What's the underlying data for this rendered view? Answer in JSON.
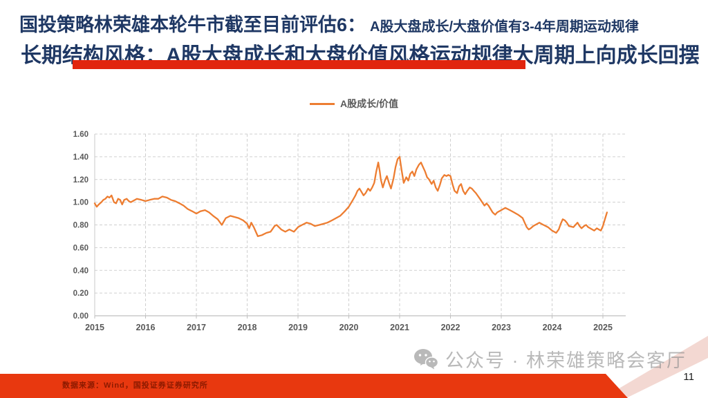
{
  "slide": {
    "title_line1_main": "国投策略林荣雄本轮牛市截至目前评估6：",
    "title_line1_sub": "A股大盘成长/大盘价值有3-4年周期运动规律",
    "title_line2": "长期结构风格：A股大盘成长和大盘价值风格运动规律大周期上向成长回摆",
    "source_note": "数据来源：Wind，国投证券证券研究所",
    "watermark_text": "公众号 · 林荣雄策略会客厅",
    "page_number": "11"
  },
  "colors": {
    "title_navy": "#1F3864",
    "underline_red": "#E1250E",
    "line_orange": "#ED7D31",
    "footer_orange_red": "#E8380F",
    "source_text_red": "#8C1A00",
    "axis_text_gray": "#595959",
    "gridline_gray": "#CFCFCF",
    "watermark_gray": "#8F8F8F"
  },
  "chart_data": {
    "type": "line",
    "title": "",
    "legend": [
      "A股成长/价值"
    ],
    "legend_position": "top-center",
    "grid": "dashed",
    "xlabel": "",
    "ylabel": "",
    "x_ticks": [
      2015,
      2016,
      2017,
      2018,
      2019,
      2020,
      2021,
      2022,
      2023,
      2024,
      2025
    ],
    "ylim": [
      0,
      1.6
    ],
    "y_tick_step": 0.2,
    "series": [
      {
        "name": "A股成长/价值",
        "color": "#ED7D31",
        "points": [
          [
            2015.0,
            0.99
          ],
          [
            2015.04,
            0.96
          ],
          [
            2015.08,
            0.98
          ],
          [
            2015.13,
            1.0
          ],
          [
            2015.17,
            1.02
          ],
          [
            2015.21,
            1.03
          ],
          [
            2015.25,
            1.05
          ],
          [
            2015.29,
            1.04
          ],
          [
            2015.33,
            1.06
          ],
          [
            2015.38,
            1.0
          ],
          [
            2015.42,
            0.99
          ],
          [
            2015.46,
            1.03
          ],
          [
            2015.5,
            1.02
          ],
          [
            2015.54,
            0.98
          ],
          [
            2015.58,
            1.02
          ],
          [
            2015.63,
            1.03
          ],
          [
            2015.67,
            1.01
          ],
          [
            2015.71,
            1.0
          ],
          [
            2015.75,
            1.01
          ],
          [
            2015.83,
            1.03
          ],
          [
            2015.92,
            1.02
          ],
          [
            2016.0,
            1.01
          ],
          [
            2016.08,
            1.02
          ],
          [
            2016.17,
            1.03
          ],
          [
            2016.25,
            1.03
          ],
          [
            2016.33,
            1.05
          ],
          [
            2016.42,
            1.04
          ],
          [
            2016.5,
            1.02
          ],
          [
            2016.58,
            1.01
          ],
          [
            2016.67,
            0.99
          ],
          [
            2016.75,
            0.97
          ],
          [
            2016.83,
            0.94
          ],
          [
            2016.92,
            0.92
          ],
          [
            2017.0,
            0.9
          ],
          [
            2017.08,
            0.92
          ],
          [
            2017.17,
            0.93
          ],
          [
            2017.25,
            0.91
          ],
          [
            2017.33,
            0.88
          ],
          [
            2017.42,
            0.85
          ],
          [
            2017.5,
            0.8
          ],
          [
            2017.58,
            0.86
          ],
          [
            2017.67,
            0.88
          ],
          [
            2017.75,
            0.87
          ],
          [
            2017.83,
            0.86
          ],
          [
            2017.92,
            0.84
          ],
          [
            2018.0,
            0.81
          ],
          [
            2018.04,
            0.77
          ],
          [
            2018.08,
            0.82
          ],
          [
            2018.13,
            0.78
          ],
          [
            2018.17,
            0.74
          ],
          [
            2018.21,
            0.7
          ],
          [
            2018.29,
            0.71
          ],
          [
            2018.38,
            0.73
          ],
          [
            2018.46,
            0.74
          ],
          [
            2018.54,
            0.79
          ],
          [
            2018.58,
            0.8
          ],
          [
            2018.67,
            0.76
          ],
          [
            2018.75,
            0.74
          ],
          [
            2018.83,
            0.76
          ],
          [
            2018.92,
            0.74
          ],
          [
            2019.0,
            0.78
          ],
          [
            2019.08,
            0.8
          ],
          [
            2019.17,
            0.82
          ],
          [
            2019.25,
            0.81
          ],
          [
            2019.33,
            0.79
          ],
          [
            2019.42,
            0.8
          ],
          [
            2019.5,
            0.81
          ],
          [
            2019.58,
            0.82
          ],
          [
            2019.67,
            0.84
          ],
          [
            2019.75,
            0.86
          ],
          [
            2019.83,
            0.88
          ],
          [
            2019.92,
            0.92
          ],
          [
            2020.0,
            0.96
          ],
          [
            2020.08,
            1.02
          ],
          [
            2020.13,
            1.06
          ],
          [
            2020.17,
            1.1
          ],
          [
            2020.21,
            1.12
          ],
          [
            2020.25,
            1.09
          ],
          [
            2020.29,
            1.06
          ],
          [
            2020.33,
            1.08
          ],
          [
            2020.38,
            1.12
          ],
          [
            2020.42,
            1.1
          ],
          [
            2020.46,
            1.13
          ],
          [
            2020.5,
            1.17
          ],
          [
            2020.54,
            1.27
          ],
          [
            2020.58,
            1.35
          ],
          [
            2020.61,
            1.27
          ],
          [
            2020.63,
            1.2
          ],
          [
            2020.67,
            1.13
          ],
          [
            2020.71,
            1.19
          ],
          [
            2020.75,
            1.23
          ],
          [
            2020.79,
            1.17
          ],
          [
            2020.83,
            1.12
          ],
          [
            2020.88,
            1.21
          ],
          [
            2020.92,
            1.31
          ],
          [
            2020.96,
            1.38
          ],
          [
            2021.0,
            1.4
          ],
          [
            2021.04,
            1.28
          ],
          [
            2021.08,
            1.17
          ],
          [
            2021.13,
            1.22
          ],
          [
            2021.17,
            1.19
          ],
          [
            2021.21,
            1.25
          ],
          [
            2021.25,
            1.27
          ],
          [
            2021.29,
            1.23
          ],
          [
            2021.33,
            1.29
          ],
          [
            2021.38,
            1.33
          ],
          [
            2021.42,
            1.35
          ],
          [
            2021.46,
            1.31
          ],
          [
            2021.5,
            1.27
          ],
          [
            2021.54,
            1.22
          ],
          [
            2021.58,
            1.2
          ],
          [
            2021.63,
            1.16
          ],
          [
            2021.67,
            1.19
          ],
          [
            2021.71,
            1.13
          ],
          [
            2021.75,
            1.1
          ],
          [
            2021.79,
            1.15
          ],
          [
            2021.83,
            1.21
          ],
          [
            2021.88,
            1.24
          ],
          [
            2021.92,
            1.23
          ],
          [
            2021.96,
            1.24
          ],
          [
            2022.0,
            1.23
          ],
          [
            2022.04,
            1.16
          ],
          [
            2022.08,
            1.1
          ],
          [
            2022.13,
            1.08
          ],
          [
            2022.17,
            1.14
          ],
          [
            2022.21,
            1.16
          ],
          [
            2022.25,
            1.1
          ],
          [
            2022.29,
            1.07
          ],
          [
            2022.33,
            1.1
          ],
          [
            2022.38,
            1.13
          ],
          [
            2022.42,
            1.12
          ],
          [
            2022.46,
            1.1
          ],
          [
            2022.5,
            1.08
          ],
          [
            2022.58,
            1.03
          ],
          [
            2022.67,
            0.97
          ],
          [
            2022.71,
            0.99
          ],
          [
            2022.75,
            0.97
          ],
          [
            2022.83,
            0.91
          ],
          [
            2022.88,
            0.89
          ],
          [
            2022.92,
            0.91
          ],
          [
            2023.0,
            0.93
          ],
          [
            2023.08,
            0.95
          ],
          [
            2023.17,
            0.93
          ],
          [
            2023.25,
            0.91
          ],
          [
            2023.33,
            0.89
          ],
          [
            2023.42,
            0.86
          ],
          [
            2023.46,
            0.82
          ],
          [
            2023.5,
            0.78
          ],
          [
            2023.54,
            0.76
          ],
          [
            2023.58,
            0.77
          ],
          [
            2023.63,
            0.79
          ],
          [
            2023.67,
            0.8
          ],
          [
            2023.75,
            0.82
          ],
          [
            2023.83,
            0.8
          ],
          [
            2023.92,
            0.78
          ],
          [
            2024.0,
            0.75
          ],
          [
            2024.08,
            0.73
          ],
          [
            2024.13,
            0.76
          ],
          [
            2024.17,
            0.81
          ],
          [
            2024.21,
            0.85
          ],
          [
            2024.25,
            0.84
          ],
          [
            2024.29,
            0.82
          ],
          [
            2024.33,
            0.79
          ],
          [
            2024.42,
            0.78
          ],
          [
            2024.46,
            0.8
          ],
          [
            2024.5,
            0.82
          ],
          [
            2024.54,
            0.79
          ],
          [
            2024.58,
            0.77
          ],
          [
            2024.63,
            0.79
          ],
          [
            2024.67,
            0.8
          ],
          [
            2024.71,
            0.78
          ],
          [
            2024.75,
            0.77
          ],
          [
            2024.79,
            0.76
          ],
          [
            2024.83,
            0.75
          ],
          [
            2024.88,
            0.77
          ],
          [
            2024.92,
            0.76
          ],
          [
            2024.96,
            0.75
          ],
          [
            2025.0,
            0.79
          ],
          [
            2025.04,
            0.85
          ],
          [
            2025.08,
            0.91
          ]
        ]
      }
    ]
  }
}
